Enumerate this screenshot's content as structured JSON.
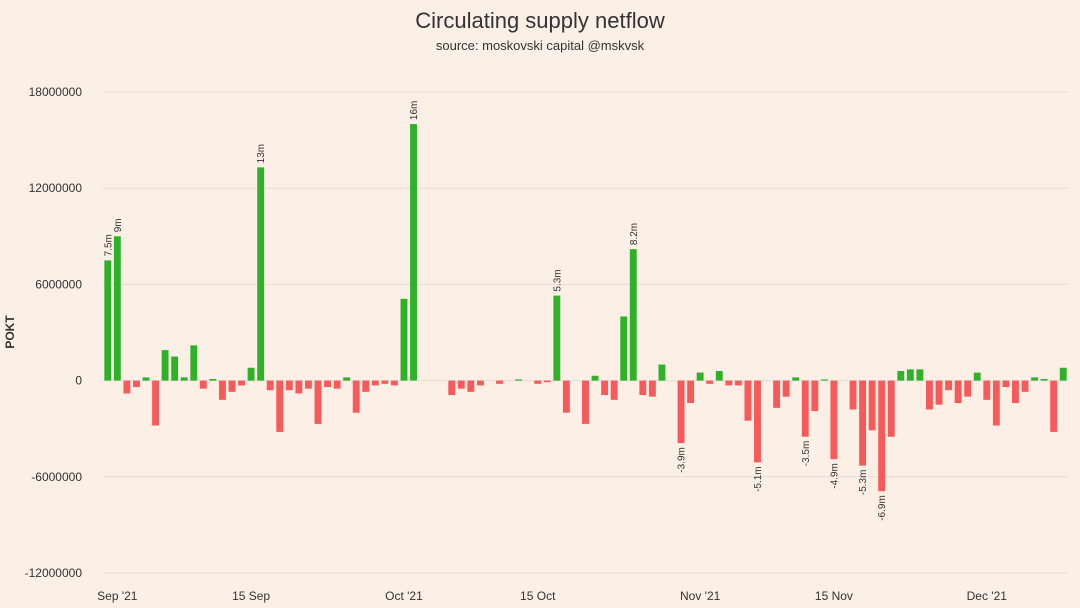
{
  "chart_data": {
    "type": "bar",
    "title": "Circulating supply netflow",
    "subtitle": "source: moskovski capital @mskvsk",
    "ylabel": "POKT",
    "xlabel": "",
    "ylim": [
      -12000000,
      18000000
    ],
    "yticks": [
      18000000,
      12000000,
      6000000,
      0,
      -6000000,
      -12000000
    ],
    "ytick_labels": [
      "18000000",
      "12000000",
      "6000000",
      "0",
      "-6000000",
      "-12000000"
    ],
    "xticks": [
      {
        "label": "Sep '21",
        "date": "2021-09-01"
      },
      {
        "label": "15 Sep",
        "date": "2021-09-15"
      },
      {
        "label": "Oct '21",
        "date": "2021-10-01"
      },
      {
        "label": "15 Oct",
        "date": "2021-10-15"
      },
      {
        "label": "Nov '21",
        "date": "2021-11-01"
      },
      {
        "label": "15 Nov",
        "date": "2021-11-15"
      },
      {
        "label": "Dec '21",
        "date": "2021-12-01"
      }
    ],
    "start_date": "2021-08-31",
    "colors": {
      "positive": "#2fb12a",
      "negative": "#f75a5a",
      "grid": "#e7dcd5",
      "text": "#333333",
      "background": "#fcefe6"
    },
    "values": [
      7500000,
      9000000,
      -800000,
      -400000,
      200000,
      -2800000,
      1900000,
      1500000,
      200000,
      2200000,
      -500000,
      100000,
      -1200000,
      -700000,
      -300000,
      800000,
      13300000,
      -600000,
      -3200000,
      -600000,
      -800000,
      -500000,
      -2700000,
      -400000,
      -500000,
      200000,
      -2000000,
      -700000,
      -300000,
      -200000,
      -300000,
      5100000,
      16000000,
      0,
      0,
      0,
      -900000,
      -500000,
      -700000,
      -300000,
      0,
      -200000,
      0,
      50000,
      0,
      -200000,
      -100000,
      5300000,
      -2000000,
      0,
      -2700000,
      300000,
      -900000,
      -1200000,
      4000000,
      8200000,
      -900000,
      -1000000,
      1000000,
      0,
      -3900000,
      -1400000,
      500000,
      -200000,
      600000,
      -300000,
      -300000,
      -2500000,
      -5100000,
      0,
      -1700000,
      -1000000,
      200000,
      -3500000,
      -1900000,
      50000,
      -4900000,
      0,
      -1800000,
      -5300000,
      -3100000,
      -6900000,
      -3500000,
      600000,
      700000,
      700000,
      -1800000,
      -1500000,
      -600000,
      -1400000,
      -1000000,
      500000,
      -1200000,
      -2800000,
      -400000,
      -1400000,
      -700000,
      200000,
      100000,
      -3200000,
      800000
    ],
    "data_labels": [
      {
        "index": 0,
        "text": "7.5m"
      },
      {
        "index": 1,
        "text": "9m"
      },
      {
        "index": 16,
        "text": "13m"
      },
      {
        "index": 32,
        "text": "16m"
      },
      {
        "index": 47,
        "text": "5.3m"
      },
      {
        "index": 55,
        "text": "8.2m"
      },
      {
        "index": 60,
        "text": "-3.9m"
      },
      {
        "index": 68,
        "text": "-5.1m"
      },
      {
        "index": 73,
        "text": "-3.5m"
      },
      {
        "index": 76,
        "text": "-4.9m"
      },
      {
        "index": 79,
        "text": "-5.3m"
      },
      {
        "index": 81,
        "text": "-6.9m"
      }
    ]
  }
}
